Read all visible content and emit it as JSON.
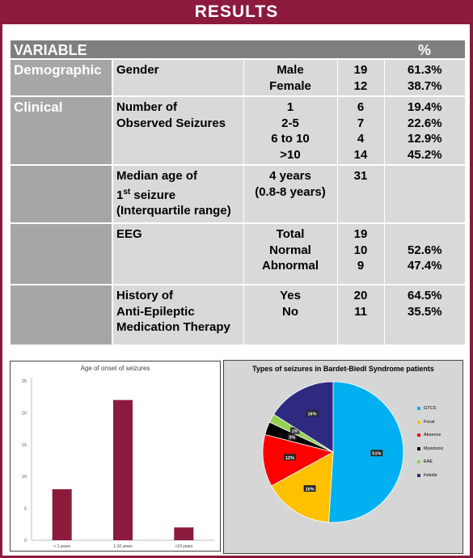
{
  "banner": {
    "title": "RESULTS"
  },
  "table": {
    "header": {
      "variable": "VARIABLE",
      "percent": "%"
    },
    "sections": {
      "demographic": "Demographic",
      "clinical": "Clinical"
    },
    "gender": {
      "label": "Gender",
      "male": {
        "label": "Male",
        "n": "19",
        "pct": "61.3%"
      },
      "female": {
        "label": "Female",
        "n": "12",
        "pct": "38.7%"
      }
    },
    "seizures": {
      "label_line1": "Number of",
      "label_line2": "Observed Seizures",
      "rows": [
        {
          "label": "1",
          "n": "6",
          "pct": "19.4%"
        },
        {
          "label": "2-5",
          "n": "7",
          "pct": "22.6%"
        },
        {
          "label": "6 to 10",
          "n": "4",
          "pct": "12.9%"
        },
        {
          "label": ">10",
          "n": "14",
          "pct": "45.2%"
        }
      ]
    },
    "median_age": {
      "label_line1": "Median age of",
      "label_line2_a": "1",
      "label_line2_sup": "st",
      "label_line2_b": " seizure",
      "label_line3": "(Interquartile range)",
      "value_line1": "4 years",
      "value_line2": "(0.8-8 years)",
      "n": "31"
    },
    "eeg": {
      "label": "EEG",
      "total": {
        "label": "Total",
        "n": "19"
      },
      "normal": {
        "label": "Normal",
        "n": "10",
        "pct": "52.6%"
      },
      "abnormal": {
        "label": "Abnormal",
        "n": "9",
        "pct": "47.4%"
      }
    },
    "aed": {
      "label_line1": "History of",
      "label_line2": "Anti-Epileptic",
      "label_line3": "Medication Therapy",
      "yes": {
        "label": "Yes",
        "n": "20",
        "pct": "64.5%"
      },
      "no": {
        "label": "No",
        "n": "11",
        "pct": "35.5%"
      }
    }
  },
  "chart_data": [
    {
      "type": "bar",
      "title": "Age of onset of seizures",
      "categories": [
        "< 1 years",
        "1-10 years",
        ">10 years"
      ],
      "values": [
        8,
        22,
        2
      ],
      "ylim": [
        0,
        25
      ],
      "yticks": [
        0,
        5,
        10,
        15,
        20,
        25
      ],
      "grid": false,
      "color": "#8c1a3c"
    },
    {
      "type": "pie",
      "title": "Types of seizures in Bardet-Biedl Syndrome patients",
      "labels": [
        "GTCS",
        "Focal",
        "Absence",
        "Myoclonic",
        "EAE",
        "Febrile"
      ],
      "values": [
        51,
        16,
        12,
        3,
        2,
        16
      ],
      "data_labels": [
        "51%",
        "16%",
        "12%",
        "3%",
        "2%",
        "16%"
      ],
      "colors": [
        "#00b0f0",
        "#ffc000",
        "#ff0000",
        "#000000",
        "#92d050",
        "#2e2a80"
      ],
      "legend": "right"
    }
  ]
}
